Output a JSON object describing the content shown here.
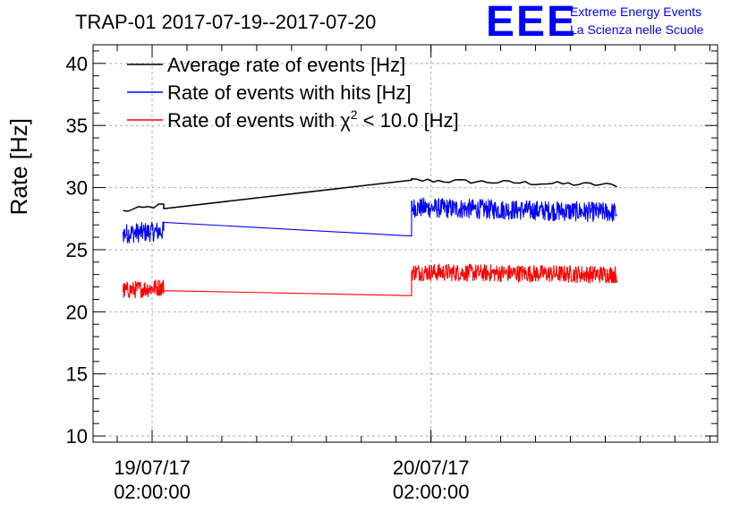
{
  "chart_data": {
    "type": "line",
    "title": "TRAP-01 2017-07-19--2017-07-20",
    "ylabel": "Rate [Hz]",
    "xlabel": "",
    "ylim": [
      9.5,
      41.5
    ],
    "xlim": [
      "2017-07-18 20:55",
      "2017-07-21 02:40"
    ],
    "yticks": [
      10,
      15,
      20,
      25,
      30,
      35,
      40
    ],
    "xticks": [
      {
        "x": "2017-07-19 02:00:00",
        "label1": "19/07/17",
        "label2": "02:00:00"
      },
      {
        "x": "2017-07-20 02:00:00",
        "label1": "20/07/17",
        "label2": "02:00:00"
      }
    ],
    "grid": true,
    "legend_position": "top-left",
    "series": [
      {
        "name": "Average rate of events [Hz]",
        "color": "#000000",
        "style": "smooth",
        "segments": [
          {
            "x": [
              "2017-07-18 23:30",
              "2017-07-19 03:00"
            ],
            "y": [
              28.1,
              28.6
            ]
          },
          {
            "x": [
              "2017-07-19 03:00",
              "2017-07-20 00:20"
            ],
            "y": [
              28.3,
              30.6
            ]
          },
          {
            "x": [
              "2017-07-20 00:20",
              "2017-07-20 18:00"
            ],
            "y": [
              30.6,
              30.2
            ]
          }
        ]
      },
      {
        "name": "Rate of events with hits [Hz]",
        "color": "#0000ff",
        "style": "noisy",
        "segments": [
          {
            "x": [
              "2017-07-18 23:30",
              "2017-07-19 03:00"
            ],
            "y": [
              26.3,
              26.5
            ],
            "noise": 0.8
          },
          {
            "x": [
              "2017-07-19 03:00",
              "2017-07-20 00:20"
            ],
            "y": [
              27.2,
              26.1
            ],
            "noise": 0
          },
          {
            "x": [
              "2017-07-20 00:20",
              "2017-07-20 18:00"
            ],
            "y": [
              28.4,
              28.0
            ],
            "noise": 0.8
          }
        ]
      },
      {
        "name": "Rate of events with χ² < 10.0 [Hz]",
        "color": "#ff0000",
        "style": "noisy",
        "segments": [
          {
            "x": [
              "2017-07-18 23:30",
              "2017-07-19 03:00"
            ],
            "y": [
              21.7,
              22.0
            ],
            "noise": 0.7
          },
          {
            "x": [
              "2017-07-19 03:00",
              "2017-07-20 00:20"
            ],
            "y": [
              21.7,
              21.3
            ],
            "noise": 0
          },
          {
            "x": [
              "2017-07-20 00:20",
              "2017-07-20 18:00"
            ],
            "y": [
              23.2,
              23.0
            ],
            "noise": 0.7
          }
        ]
      }
    ]
  },
  "legend": {
    "items": [
      {
        "text": "Average rate of events [Hz]",
        "color": "#000000"
      },
      {
        "text": "Rate of events with hits [Hz]",
        "color": "#0000ff"
      },
      {
        "text_pre": "Rate of events with χ",
        "text_sup": "2",
        "text_post": " < 10.0 [Hz]",
        "color": "#ff0000"
      }
    ]
  },
  "logo": {
    "mark": "EEE",
    "line1": "Extreme Energy Events",
    "line2": "La Scienza nelle Scuole",
    "color": "#0000ff"
  }
}
